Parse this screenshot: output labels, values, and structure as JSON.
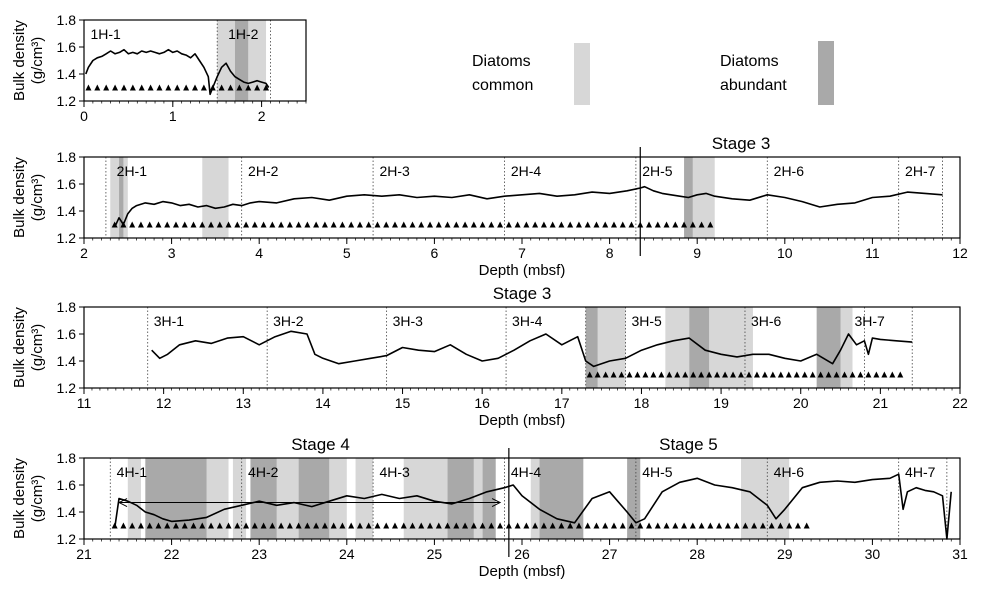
{
  "legend": {
    "common_label_1": "Diatoms",
    "common_label_2": "common",
    "abundant_label_1": "Diatoms",
    "abundant_label_2": "abundant",
    "colors": {
      "common": "#d7d7d7",
      "abundant": "#a9a9a9"
    }
  },
  "ylabel_1": "Bulk density",
  "ylabel_2": "(g/cm³)",
  "xlabel": "Depth (mbsf)",
  "chart_data": [
    {
      "type": "line",
      "id": "core1",
      "title": "",
      "xlim": [
        0,
        2.5
      ],
      "ylim": [
        1.2,
        1.8
      ],
      "xticks": [
        0,
        1,
        2
      ],
      "yticks": [
        1.2,
        1.4,
        1.6,
        1.8
      ],
      "xlabel": "",
      "show_xlabel": false,
      "sections": [
        {
          "label": "1H-1",
          "x": 0.05
        },
        {
          "label": "1H-2",
          "x": 1.6
        }
      ],
      "section_boundaries": [
        1.5,
        2.1
      ],
      "common_zones": [
        [
          1.5,
          1.7
        ],
        [
          1.85,
          2.05
        ]
      ],
      "abundant_zones": [
        [
          1.7,
          1.85
        ]
      ],
      "triangles": {
        "start": 0.05,
        "end": 2.05,
        "step": 0.1
      },
      "stage_labels": [],
      "stage_lines": [],
      "arrows": [],
      "series": [
        {
          "x": [
            0.02,
            0.05,
            0.1,
            0.15,
            0.2,
            0.25,
            0.3,
            0.35,
            0.4,
            0.45,
            0.5,
            0.55,
            0.6,
            0.65,
            0.7,
            0.75,
            0.8,
            0.85,
            0.9,
            0.95,
            1.0,
            1.05,
            1.1,
            1.15,
            1.2,
            1.25,
            1.3,
            1.35,
            1.4,
            1.42,
            1.45,
            1.5,
            1.55,
            1.6,
            1.65,
            1.7,
            1.75,
            1.8,
            1.85,
            1.9,
            1.95,
            2.0,
            2.05,
            2.08
          ],
          "values": [
            1.4,
            1.45,
            1.5,
            1.52,
            1.53,
            1.55,
            1.57,
            1.55,
            1.56,
            1.58,
            1.55,
            1.56,
            1.55,
            1.57,
            1.56,
            1.57,
            1.56,
            1.55,
            1.56,
            1.58,
            1.56,
            1.57,
            1.55,
            1.54,
            1.52,
            1.55,
            1.5,
            1.45,
            1.38,
            1.25,
            1.3,
            1.38,
            1.45,
            1.48,
            1.42,
            1.38,
            1.36,
            1.34,
            1.33,
            1.34,
            1.35,
            1.34,
            1.33,
            1.3
          ]
        }
      ]
    },
    {
      "type": "line",
      "id": "core2",
      "title": "",
      "xlim": [
        2,
        12
      ],
      "ylim": [
        1.2,
        1.8
      ],
      "xticks": [
        2,
        3,
        4,
        5,
        6,
        7,
        8,
        9,
        10,
        11,
        12
      ],
      "yticks": [
        1.2,
        1.4,
        1.6,
        1.8
      ],
      "xlabel": "Depth (mbsf)",
      "show_xlabel": true,
      "sections": [
        {
          "label": "2H-1",
          "x": 2.35
        },
        {
          "label": "2H-2",
          "x": 3.85
        },
        {
          "label": "2H-3",
          "x": 5.35
        },
        {
          "label": "2H-4",
          "x": 6.85
        },
        {
          "label": "2H-5",
          "x": 8.35
        },
        {
          "label": "2H-6",
          "x": 9.85
        },
        {
          "label": "2H-7",
          "x": 11.35
        }
      ],
      "section_boundaries": [
        2.25,
        3.8,
        5.3,
        6.8,
        8.3,
        9.8,
        11.3,
        11.8
      ],
      "common_zones": [
        [
          2.3,
          2.4
        ],
        [
          2.45,
          2.5
        ],
        [
          3.35,
          3.65
        ],
        [
          8.95,
          9.2
        ]
      ],
      "abundant_zones": [
        [
          2.4,
          2.45
        ],
        [
          8.85,
          8.95
        ]
      ],
      "triangles": {
        "start": 2.35,
        "end": 9.2,
        "step": 0.1
      },
      "stage_labels": [
        {
          "label": "Stage  3",
          "x": 9.5,
          "above": true
        }
      ],
      "stage_lines": [
        8.35
      ],
      "arrows": [],
      "series": [
        {
          "x": [
            2.35,
            2.4,
            2.45,
            2.5,
            2.55,
            2.6,
            2.7,
            2.8,
            2.9,
            3.0,
            3.1,
            3.2,
            3.3,
            3.4,
            3.5,
            3.6,
            3.7,
            3.8,
            3.9,
            4.0,
            4.2,
            4.4,
            4.6,
            4.8,
            5.0,
            5.2,
            5.4,
            5.6,
            5.8,
            6.0,
            6.2,
            6.4,
            6.6,
            6.8,
            7.0,
            7.2,
            7.4,
            7.6,
            7.8,
            8.0,
            8.2,
            8.35,
            8.4,
            8.5,
            8.6,
            8.7,
            8.8,
            8.9,
            9.0,
            9.1,
            9.2,
            9.4,
            9.6,
            9.8,
            10.0,
            10.2,
            10.4,
            10.6,
            10.8,
            11.0,
            11.2,
            11.4,
            11.6,
            11.8
          ],
          "values": [
            1.28,
            1.35,
            1.3,
            1.38,
            1.42,
            1.44,
            1.46,
            1.45,
            1.47,
            1.46,
            1.44,
            1.45,
            1.43,
            1.44,
            1.42,
            1.43,
            1.45,
            1.44,
            1.46,
            1.47,
            1.46,
            1.49,
            1.5,
            1.48,
            1.51,
            1.52,
            1.51,
            1.52,
            1.5,
            1.51,
            1.5,
            1.52,
            1.49,
            1.51,
            1.52,
            1.53,
            1.51,
            1.52,
            1.54,
            1.53,
            1.55,
            1.57,
            1.58,
            1.55,
            1.53,
            1.52,
            1.51,
            1.5,
            1.52,
            1.53,
            1.51,
            1.49,
            1.48,
            1.52,
            1.5,
            1.47,
            1.43,
            1.45,
            1.46,
            1.5,
            1.51,
            1.54,
            1.53,
            1.52
          ]
        }
      ]
    },
    {
      "type": "line",
      "id": "core3",
      "title": "",
      "xlim": [
        11,
        22
      ],
      "ylim": [
        1.2,
        1.8
      ],
      "xticks": [
        11,
        12,
        13,
        14,
        15,
        16,
        17,
        18,
        19,
        20,
        21,
        22
      ],
      "yticks": [
        1.2,
        1.4,
        1.6,
        1.8
      ],
      "xlabel": "Depth (mbsf)",
      "show_xlabel": true,
      "sections": [
        {
          "label": "3H-1",
          "x": 11.85
        },
        {
          "label": "3H-2",
          "x": 13.35
        },
        {
          "label": "3H-3",
          "x": 14.85
        },
        {
          "label": "3H-4",
          "x": 16.35
        },
        {
          "label": "3H-5",
          "x": 17.85
        },
        {
          "label": "3H-6",
          "x": 19.35
        },
        {
          "label": "3H-7",
          "x": 20.65
        }
      ],
      "section_boundaries": [
        11.8,
        13.3,
        14.8,
        16.3,
        17.3,
        17.8,
        19.3,
        20.8,
        21.4
      ],
      "common_zones": [
        [
          17.45,
          17.8
        ],
        [
          18.3,
          18.6
        ],
        [
          18.85,
          19.4
        ],
        [
          20.5,
          20.65
        ]
      ],
      "abundant_zones": [
        [
          17.3,
          17.45
        ],
        [
          18.6,
          18.85
        ],
        [
          20.2,
          20.5
        ]
      ],
      "triangles": {
        "start": 17.35,
        "end": 21.3,
        "step": 0.1
      },
      "stage_labels": [
        {
          "label": "Stage  3",
          "x": 16.5,
          "above": true
        }
      ],
      "stage_lines": [],
      "arrows": [],
      "series": [
        {
          "x": [
            11.85,
            11.95,
            12.05,
            12.2,
            12.4,
            12.6,
            12.8,
            13.0,
            13.2,
            13.4,
            13.6,
            13.8,
            13.9,
            14.0,
            14.2,
            14.4,
            14.6,
            14.8,
            15.0,
            15.2,
            15.4,
            15.6,
            15.8,
            16.0,
            16.2,
            16.4,
            16.6,
            16.8,
            17.0,
            17.2,
            17.3,
            17.4,
            17.6,
            17.8,
            18.0,
            18.2,
            18.4,
            18.6,
            18.8,
            19.0,
            19.2,
            19.4,
            19.6,
            19.8,
            20.0,
            20.2,
            20.4,
            20.5,
            20.6,
            20.7,
            20.8,
            20.85,
            20.9,
            21.0,
            21.2,
            21.4
          ],
          "values": [
            1.48,
            1.42,
            1.45,
            1.52,
            1.55,
            1.53,
            1.57,
            1.58,
            1.52,
            1.58,
            1.62,
            1.6,
            1.45,
            1.42,
            1.38,
            1.4,
            1.42,
            1.44,
            1.5,
            1.48,
            1.47,
            1.52,
            1.45,
            1.4,
            1.42,
            1.48,
            1.55,
            1.6,
            1.52,
            1.58,
            1.4,
            1.36,
            1.4,
            1.42,
            1.48,
            1.52,
            1.55,
            1.57,
            1.48,
            1.45,
            1.43,
            1.45,
            1.45,
            1.42,
            1.4,
            1.45,
            1.38,
            1.48,
            1.6,
            1.52,
            1.55,
            1.45,
            1.57,
            1.56,
            1.55,
            1.54
          ]
        }
      ]
    },
    {
      "type": "line",
      "id": "core4",
      "title": "",
      "xlim": [
        21,
        31
      ],
      "ylim": [
        1.2,
        1.8
      ],
      "xticks": [
        21,
        22,
        23,
        24,
        25,
        26,
        27,
        28,
        29,
        30,
        31
      ],
      "yticks": [
        1.2,
        1.4,
        1.6,
        1.8
      ],
      "xlabel": "Depth (mbsf)",
      "show_xlabel": true,
      "sections": [
        {
          "label": "4H-1",
          "x": 21.35
        },
        {
          "label": "4H-2",
          "x": 22.85
        },
        {
          "label": "4H-3",
          "x": 24.35
        },
        {
          "label": "4H-4",
          "x": 25.85
        },
        {
          "label": "4H-5",
          "x": 27.35
        },
        {
          "label": "4H-6",
          "x": 28.85
        },
        {
          "label": "4H-7",
          "x": 30.35
        }
      ],
      "section_boundaries": [
        21.3,
        22.8,
        24.3,
        25.8,
        27.3,
        28.8,
        30.3,
        30.85
      ],
      "common_zones": [
        [
          21.5,
          21.65
        ],
        [
          22.4,
          22.65
        ],
        [
          22.7,
          22.85
        ],
        [
          23.2,
          23.45
        ],
        [
          23.8,
          24.0
        ],
        [
          24.1,
          24.3
        ],
        [
          24.65,
          25.15
        ],
        [
          25.45,
          25.55
        ],
        [
          26.1,
          26.2
        ],
        [
          28.5,
          29.05
        ]
      ],
      "abundant_zones": [
        [
          21.7,
          22.4
        ],
        [
          22.9,
          23.2
        ],
        [
          23.45,
          23.8
        ],
        [
          25.15,
          25.45
        ],
        [
          25.55,
          25.7
        ],
        [
          26.2,
          26.7
        ],
        [
          27.2,
          27.35
        ]
      ],
      "triangles": {
        "start": 21.35,
        "end": 29.3,
        "step": 0.1
      },
      "stage_labels": [
        {
          "label": "Stage  4",
          "x": 23.7,
          "above": true
        },
        {
          "label": "Stage  5",
          "x": 27.9,
          "above": true
        }
      ],
      "stage_lines": [
        25.85
      ],
      "arrows": [
        {
          "from": 21.4,
          "to": 25.75,
          "y": 1.47
        }
      ],
      "series": [
        {
          "x": [
            21.35,
            21.4,
            21.5,
            21.6,
            21.7,
            21.8,
            21.9,
            22.0,
            22.2,
            22.4,
            22.6,
            22.8,
            23.0,
            23.2,
            23.4,
            23.6,
            23.8,
            24.0,
            24.2,
            24.4,
            24.6,
            24.8,
            25.0,
            25.2,
            25.4,
            25.6,
            25.8,
            25.9,
            26.0,
            26.2,
            26.4,
            26.6,
            26.8,
            27.0,
            27.2,
            27.3,
            27.4,
            27.6,
            27.8,
            28.0,
            28.2,
            28.4,
            28.6,
            28.8,
            28.9,
            29.0,
            29.2,
            29.4,
            29.6,
            29.8,
            30.0,
            30.2,
            30.3,
            30.35,
            30.4,
            30.5,
            30.6,
            30.7,
            30.8,
            30.85,
            30.9
          ],
          "values": [
            1.28,
            1.5,
            1.48,
            1.45,
            1.4,
            1.38,
            1.35,
            1.33,
            1.34,
            1.36,
            1.42,
            1.45,
            1.48,
            1.45,
            1.47,
            1.44,
            1.48,
            1.52,
            1.5,
            1.53,
            1.5,
            1.52,
            1.48,
            1.46,
            1.5,
            1.55,
            1.58,
            1.6,
            1.52,
            1.42,
            1.35,
            1.32,
            1.5,
            1.55,
            1.4,
            1.32,
            1.35,
            1.55,
            1.62,
            1.65,
            1.6,
            1.58,
            1.55,
            1.45,
            1.35,
            1.42,
            1.58,
            1.62,
            1.63,
            1.62,
            1.64,
            1.65,
            1.68,
            1.42,
            1.55,
            1.58,
            1.56,
            1.55,
            1.52,
            1.2,
            1.55
          ]
        }
      ]
    }
  ]
}
